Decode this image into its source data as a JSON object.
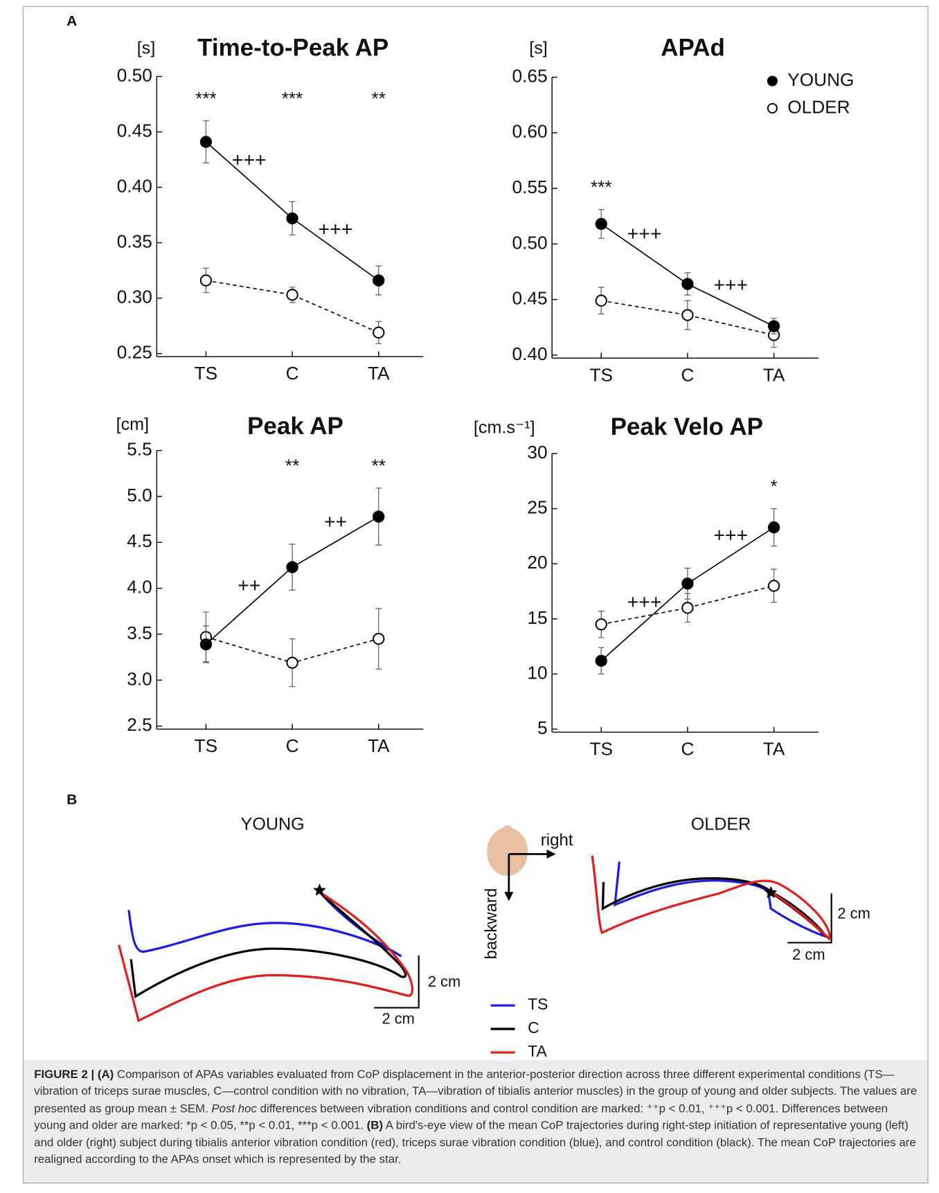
{
  "figure_label_a": "A",
  "chart_data": [
    {
      "type": "line",
      "title": "Time-to-Peak AP",
      "y_unit": "[s]",
      "categories": [
        "TS",
        "C",
        "TA"
      ],
      "series": [
        {
          "name": "YOUNG",
          "color": "#000000",
          "marker": "filled",
          "line_style": "solid",
          "values": [
            0.441,
            0.372,
            0.316
          ],
          "errors": [
            0.019,
            0.015,
            0.013
          ]
        },
        {
          "name": "OLDER",
          "color": "#000000",
          "marker": "open",
          "line_style": "dashed",
          "values": [
            0.316,
            0.303,
            0.269
          ],
          "errors": [
            0.011,
            0.007,
            0.01
          ]
        }
      ],
      "ylim": [
        0.25,
        0.5
      ],
      "yticks": [
        0.25,
        {
          "value": 0.3,
          "label": "0.30"
        },
        0.35,
        {
          "value": 0.4,
          "label": "0.40"
        },
        0.45,
        {
          "value": 0.5,
          "label": "0.50"
        }
      ],
      "group_significance": [
        "***",
        "***",
        "**"
      ],
      "condition_significance": [
        "+++",
        "+++"
      ]
    },
    {
      "type": "line",
      "title": "APAd",
      "y_unit": "[s]",
      "categories": [
        "TS",
        "C",
        "TA"
      ],
      "series": [
        {
          "name": "YOUNG",
          "color": "#000000",
          "marker": "filled",
          "line_style": "solid",
          "values": [
            0.518,
            0.464,
            0.426
          ],
          "errors": [
            0.013,
            0.01,
            0.007
          ]
        },
        {
          "name": "OLDER",
          "color": "#000000",
          "marker": "open",
          "line_style": "dashed",
          "values": [
            0.449,
            0.436,
            0.418
          ],
          "errors": [
            0.012,
            0.013,
            0.011
          ]
        }
      ],
      "ylim": [
        0.4,
        0.65
      ],
      "yticks": [
        {
          "value": 0.4,
          "label": "0.40"
        },
        0.45,
        {
          "value": 0.5,
          "label": "0.50"
        },
        0.55,
        {
          "value": 0.6,
          "label": "0.60"
        },
        0.65
      ],
      "group_significance": [
        "***",
        null,
        null
      ],
      "condition_significance": [
        "+++",
        "+++"
      ],
      "legend": "upper right"
    },
    {
      "type": "line",
      "title": "Peak AP",
      "y_unit": "[cm]",
      "categories": [
        "TS",
        "C",
        "TA"
      ],
      "series": [
        {
          "name": "YOUNG",
          "color": "#000000",
          "marker": "filled",
          "line_style": "solid",
          "values": [
            3.39,
            4.23,
            4.78
          ],
          "errors": [
            0.2,
            0.25,
            0.31
          ]
        },
        {
          "name": "OLDER",
          "color": "#000000",
          "marker": "open",
          "line_style": "dashed",
          "values": [
            3.47,
            3.19,
            3.45
          ],
          "errors": [
            0.27,
            0.26,
            0.33
          ]
        }
      ],
      "ylim": [
        2.5,
        5.5
      ],
      "yticks": [
        2.5,
        {
          "value": 3,
          "label": "3.0"
        },
        3.5,
        {
          "value": 4,
          "label": "4.0"
        },
        4.5,
        {
          "value": 5,
          "label": "5.0"
        },
        5.5
      ],
      "group_significance": [
        null,
        "**",
        "**"
      ],
      "condition_significance": [
        "++",
        "++"
      ]
    },
    {
      "type": "line",
      "title": "Peak Velo AP",
      "y_unit": "[cm.s⁻¹]",
      "categories": [
        "TS",
        "C",
        "TA"
      ],
      "series": [
        {
          "name": "YOUNG",
          "color": "#000000",
          "marker": "filled",
          "line_style": "solid",
          "values": [
            11.2,
            18.2,
            23.3
          ],
          "errors": [
            1.2,
            1.4,
            1.7
          ]
        },
        {
          "name": "OLDER",
          "color": "#000000",
          "marker": "open",
          "line_style": "dashed",
          "values": [
            14.5,
            16.0,
            18.0
          ],
          "errors": [
            1.2,
            1.3,
            1.5
          ]
        }
      ],
      "ylim": [
        5,
        30
      ],
      "yticks": [
        5,
        10,
        15,
        20,
        25,
        30
      ],
      "group_significance": [
        null,
        null,
        "*"
      ],
      "condition_significance": [
        "+++",
        "+++"
      ]
    }
  ],
  "panel_b": {
    "label": "B",
    "titles": [
      "YOUNG",
      "OLDER"
    ],
    "directions": {
      "right": "right",
      "backward": "backward"
    },
    "scale_labels": [
      "2 cm",
      "2 cm",
      "2 cm",
      "2 cm"
    ],
    "legend": [
      {
        "name": "TS",
        "color": "#1f1fe0"
      },
      {
        "name": "C",
        "color": "#000000"
      },
      {
        "name": "TA",
        "color": "#e01f1f"
      }
    ]
  },
  "caption": [
    "FIGURE 2 | (A)",
    " Comparison of APAs variables evaluated from CoP displacement in the anterior-posterior direction across three different experimental conditions (TS—vibration of triceps surae muscles, C—control condition with no vibration, TA—vibration of tibialis anterior muscles) in the group of young and older subjects. The values are presented as group mean ± SEM. ",
    "Post hoc",
    " differences between vibration conditions and control condition are marked: ⁺⁺p < 0.01, ⁺⁺⁺p < 0.001. Differences between young and older are marked: *p < 0.05, **p < 0.01, ***p < 0.001. ",
    "(B)",
    " A bird's-eye view of the mean CoP trajectories during right-step initiation of representative young (left) and older (right) subject during tibialis anterior vibration condition (red), triceps surae vibration condition (blue), and control condition (black). The mean CoP trajectories are realigned according to the APAs onset which is represented by the star."
  ]
}
